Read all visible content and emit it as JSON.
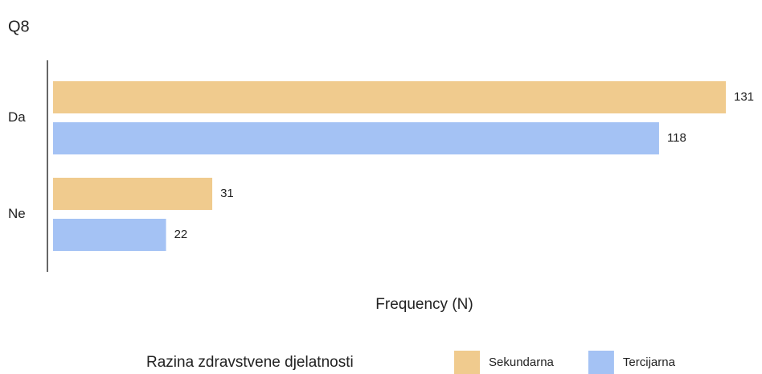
{
  "chart_data": {
    "type": "bar",
    "orientation": "horizontal",
    "title": "Q8",
    "categories": [
      "Da",
      "Ne"
    ],
    "series": [
      {
        "name": "Sekundarna",
        "color": "#f0cb8e",
        "values": [
          131,
          31
        ]
      },
      {
        "name": "Tercijarna",
        "color": "#a4c2f4",
        "values": [
          118,
          22
        ]
      }
    ],
    "xlabel": "Frequency (N)",
    "legend_title": "Razina zdravstvene djelatnosti",
    "xlim": [
      0,
      131
    ]
  }
}
